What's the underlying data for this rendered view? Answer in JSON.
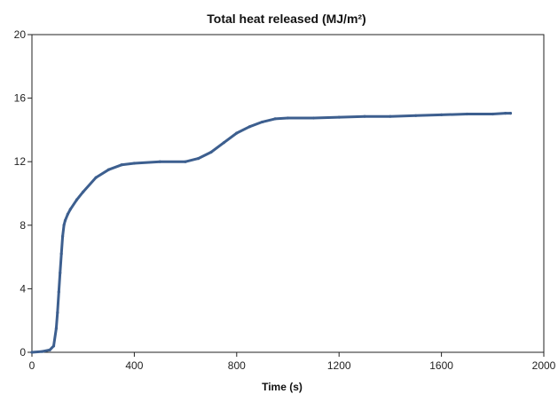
{
  "chart_data": {
    "type": "line",
    "title": "Total heat released (MJ/m²)",
    "xlabel": "Time (s)",
    "ylabel": "",
    "xlim": [
      0,
      2000
    ],
    "ylim": [
      0,
      20
    ],
    "xticks": [
      0,
      400,
      800,
      1200,
      1600,
      2000
    ],
    "yticks": [
      0,
      4,
      8,
      12,
      16,
      20
    ],
    "grid": false,
    "series_color": "#3d5f8f",
    "series": [
      {
        "x": [
          0,
          40,
          70,
          85,
          95,
          100,
          105,
          110,
          115,
          120,
          125,
          130,
          140,
          150,
          175,
          200,
          250,
          300,
          350,
          400,
          500,
          600,
          650,
          700,
          750,
          800,
          850,
          900,
          950,
          1000,
          1100,
          1200,
          1300,
          1400,
          1500,
          1600,
          1700,
          1800,
          1850,
          1870
        ],
        "y": [
          0,
          0.05,
          0.15,
          0.4,
          1.5,
          2.5,
          3.8,
          5.0,
          6.2,
          7.3,
          8.0,
          8.3,
          8.7,
          9.0,
          9.6,
          10.1,
          11.0,
          11.5,
          11.8,
          11.9,
          12.0,
          12.0,
          12.2,
          12.6,
          13.2,
          13.8,
          14.2,
          14.5,
          14.7,
          14.75,
          14.75,
          14.8,
          14.85,
          14.85,
          14.9,
          14.95,
          15.0,
          15.0,
          15.05,
          15.05
        ]
      }
    ]
  }
}
